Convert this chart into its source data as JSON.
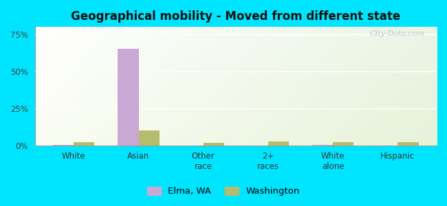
{
  "title": "Geographical mobility - Moved from different state",
  "categories": [
    "White",
    "Asian",
    "Other\nrace",
    "2+\nraces",
    "White\nalone",
    "Hispanic"
  ],
  "elma_values": [
    0.5,
    65.0,
    0.0,
    0.0,
    0.5,
    0.0
  ],
  "washington_values": [
    2.5,
    10.0,
    2.0,
    2.8,
    2.3,
    2.2
  ],
  "elma_color": "#c9a8d4",
  "washington_color": "#b5bc6e",
  "ylim": [
    0,
    80
  ],
  "yticks": [
    0,
    25,
    50,
    75
  ],
  "ytick_labels": [
    "0%",
    "25%",
    "50%",
    "75%"
  ],
  "bar_width": 0.32,
  "figure_bg": "#00e5ff",
  "legend_elma": "Elma, WA",
  "legend_washington": "Washington",
  "watermark": "City-Data.com"
}
